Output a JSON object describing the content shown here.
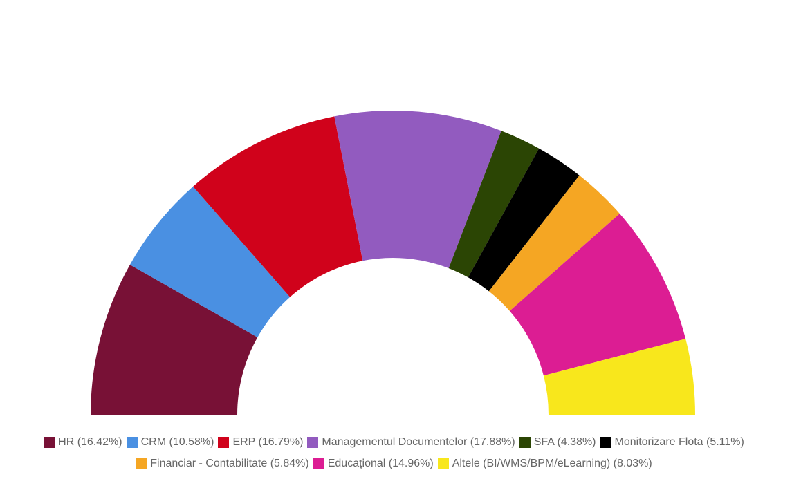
{
  "chart_data": {
    "type": "pie",
    "variant": "semi-donut",
    "legend_position": "bottom",
    "slices": [
      {
        "label": "HR (16.42%)",
        "value": 16.42,
        "color": "#781136"
      },
      {
        "label": "CRM (10.58%)",
        "value": 10.58,
        "color": "#4a90e2"
      },
      {
        "label": "ERP (16.79%)",
        "value": 16.79,
        "color": "#d0021b"
      },
      {
        "label": "Managementul Documentelor (17.88%)",
        "value": 17.88,
        "color": "#925bbf"
      },
      {
        "label": "SFA (4.38%)",
        "value": 4.38,
        "color": "#2b4504"
      },
      {
        "label": "Monitorizare Flota (5.11%)",
        "value": 5.11,
        "color": "#000000"
      },
      {
        "label": "Financiar - Contabilitate (5.84%)",
        "value": 5.84,
        "color": "#f5a623"
      },
      {
        "label": "Educațional (14.96%)",
        "value": 14.96,
        "color": "#dc1d93"
      },
      {
        "label": "Altele (BI/WMS/BPM/eLearning) (8.03%)",
        "value": 8.03,
        "color": "#f8e71c"
      }
    ]
  }
}
